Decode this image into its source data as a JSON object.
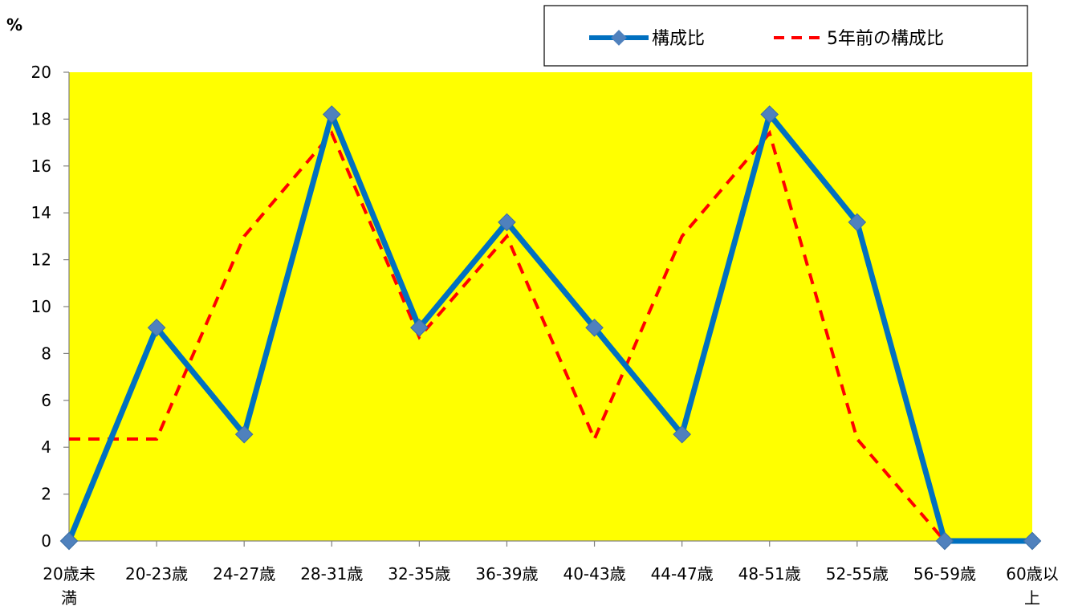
{
  "chart_data": {
    "type": "line",
    "y_unit": "%",
    "categories": [
      [
        "20歳未",
        "満"
      ],
      [
        "20-23歳"
      ],
      [
        "24-27歳"
      ],
      [
        "28-31歳"
      ],
      [
        "32-35歳"
      ],
      [
        "36-39歳"
      ],
      [
        "40-43歳"
      ],
      [
        "44-47歳"
      ],
      [
        "48-51歳"
      ],
      [
        "52-55歳"
      ],
      [
        "56-59歳"
      ],
      [
        "60歳以",
        "上"
      ]
    ],
    "ylim": [
      0,
      20
    ],
    "yticks": [
      0,
      2,
      4,
      6,
      8,
      10,
      12,
      14,
      16,
      18,
      20
    ],
    "grid": false,
    "plot_background": "#FFFF00",
    "legend_position": "top-right",
    "series": [
      {
        "name": "構成比",
        "color": "#0070C0",
        "marker": "diamond",
        "marker_color": "#4F81BD",
        "style": "solid",
        "values": [
          0.0,
          9.1,
          4.55,
          18.2,
          9.1,
          13.6,
          9.1,
          4.55,
          18.2,
          13.6,
          0.0,
          0.0
        ]
      },
      {
        "name": "5年前の構成比",
        "color": "#FF0000",
        "style": "dashed",
        "values": [
          4.35,
          4.35,
          13.0,
          17.4,
          8.7,
          13.0,
          4.35,
          13.0,
          17.4,
          4.35,
          0.0,
          0.0
        ]
      }
    ]
  }
}
